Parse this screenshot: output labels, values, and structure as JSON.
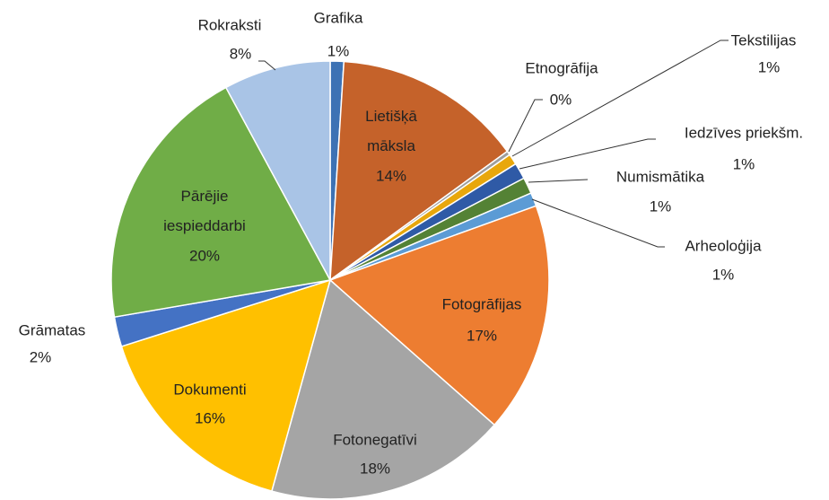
{
  "chart_data": {
    "type": "pie",
    "categories": [
      "Grafika",
      "Lietišķā māksla",
      "Etnogrāfija",
      "Tekstilijas",
      "Iedzīves priekšm.",
      "Numismātika",
      "Arheoloģija",
      "Fotogrāfijas",
      "Fotonegatīvi",
      "Dokumenti",
      "Grāmatas",
      "Pārējie iespieddarbi",
      "Rokraksti"
    ],
    "values": [
      1.0,
      14.0,
      0.3,
      0.8,
      1.2,
      1.2,
      1.0,
      17.0,
      17.8,
      15.8,
      2.2,
      19.8,
      7.9
    ],
    "value_labels": [
      "1%",
      "14%",
      "0%",
      "1%",
      "1%",
      "1%",
      "1%",
      "17%",
      "18%",
      "16%",
      "2%",
      "20%",
      "8%"
    ],
    "colors": [
      "#3d72b4",
      "#c5622a",
      "#9e9e9e",
      "#e8a70c",
      "#2f5aa6",
      "#548235",
      "#5b9bd5",
      "#ed7d31",
      "#a5a5a5",
      "#ffc000",
      "#4472c4",
      "#70ad47",
      "#a9c4e6"
    ]
  }
}
